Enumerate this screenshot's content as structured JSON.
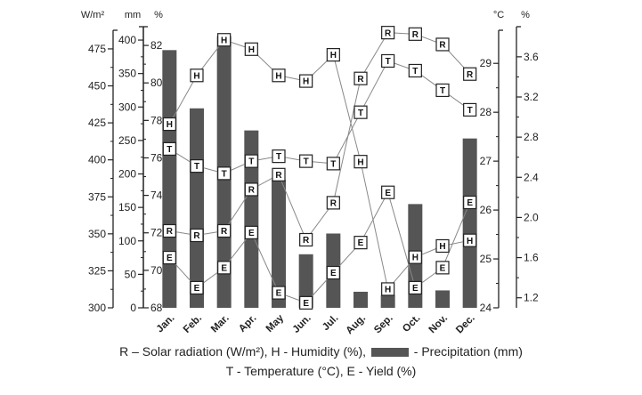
{
  "chart_data": {
    "type": "bar",
    "categories": [
      "Jan.",
      "Feb.",
      "Mar.",
      "Apr.",
      "May",
      "Jun.",
      "Jul.",
      "Aug.",
      "Sep.",
      "Oct.",
      "Nov.",
      "Dec."
    ],
    "bar_series": {
      "name": "Precipitation",
      "marker": "",
      "axis": "mm",
      "color": "#555555",
      "values": [
        385,
        298,
        406,
        265,
        191,
        80,
        111,
        24,
        19,
        155,
        26,
        253
      ]
    },
    "line_series": [
      {
        "name": "Solar radiation",
        "marker": "R",
        "axis": "W/m²",
        "values": [
          352,
          349,
          352,
          380,
          390,
          346,
          371,
          455,
          486,
          485,
          478,
          458
        ]
      },
      {
        "name": "Humidity",
        "marker": "H",
        "axis": "%",
        "values": [
          77.8,
          80.4,
          82.3,
          81.8,
          80.4,
          80.1,
          81.5,
          75.8,
          69.0,
          70.7,
          71.3,
          71.6
        ]
      },
      {
        "name": "Temperature",
        "marker": "T",
        "axis": "°C",
        "values": [
          27.25,
          26.9,
          26.75,
          27.0,
          27.1,
          27.0,
          26.95,
          28.0,
          29.05,
          28.85,
          28.45,
          28.05
        ]
      },
      {
        "name": "Yield",
        "marker": "E",
        "axis": "%",
        "values": [
          1.6,
          1.3,
          1.5,
          1.85,
          1.25,
          1.15,
          1.45,
          1.75,
          2.25,
          1.3,
          1.5,
          2.15
        ]
      }
    ],
    "axes": [
      {
        "unit": "W/m²",
        "side": "left",
        "range": [
          300,
          490
        ],
        "ticks": [
          "300",
          "325",
          "350",
          "375",
          "400",
          "425",
          "450",
          "475"
        ]
      },
      {
        "unit": "mm",
        "side": "left",
        "range": [
          0,
          420
        ],
        "ticks": [
          "0",
          "50",
          "100",
          "150",
          "200",
          "250",
          "300",
          "350",
          "400"
        ]
      },
      {
        "unit": "%",
        "side": "left",
        "range": [
          68,
          83
        ],
        "ticks": [
          "68",
          "70",
          "72",
          "74",
          "76",
          "78",
          "80",
          "82"
        ]
      },
      {
        "unit": "°C",
        "side": "right",
        "range": [
          24,
          29.75
        ],
        "ticks": [
          "24",
          "25",
          "26",
          "27",
          "28",
          "29"
        ]
      },
      {
        "unit": "%",
        "side": "right",
        "range": [
          1.1,
          3.9
        ],
        "ticks": [
          "1.2",
          "1.6",
          "2.0",
          "2.4",
          "2.8",
          "3.2",
          "3.6"
        ]
      }
    ],
    "legend": {
      "r": "R – Solar radiation (W/m²),",
      "h": "H - Humidity (%),",
      "precip": "- Precipitation (mm)",
      "t": "T - Temperature (°C),",
      "e": "E - Yield (%)"
    },
    "legend_placement": "bottom",
    "grid": false
  }
}
